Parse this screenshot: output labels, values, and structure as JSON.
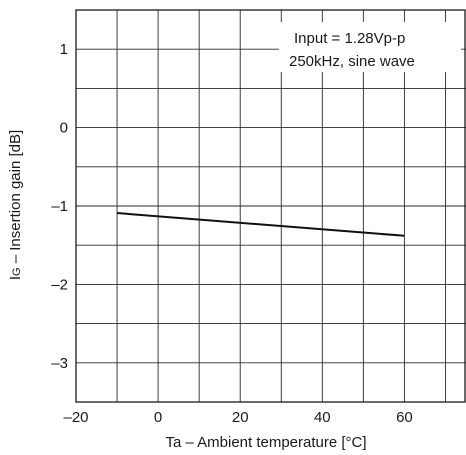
{
  "chart_data": {
    "type": "line",
    "title": "",
    "xlabel": "Ta – Ambient temperature [°C]",
    "ylabel_main": "I",
    "ylabel_sub": "G",
    "ylabel_rest": " – Insertion gain [dB]",
    "xlim": [
      -20,
      75
    ],
    "ylim": [
      -3.5,
      1.5
    ],
    "x_ticks": [
      -20,
      0,
      20,
      40,
      60
    ],
    "x_tick_labels": [
      "–20",
      "0",
      "20",
      "40",
      "60"
    ],
    "y_ticks": [
      -3,
      -2,
      -1,
      0,
      1
    ],
    "y_tick_labels": [
      "–3",
      "–2",
      "–1",
      "0",
      "1"
    ],
    "x_grid_step": 10,
    "y_grid_step": 0.5,
    "grid": true,
    "annotations": [
      "Input = 1.28Vp-p",
      "250kHz, sine wave"
    ],
    "series": [
      {
        "x": [
          -10,
          60
        ],
        "y": [
          -1.09,
          -1.38
        ]
      }
    ]
  }
}
